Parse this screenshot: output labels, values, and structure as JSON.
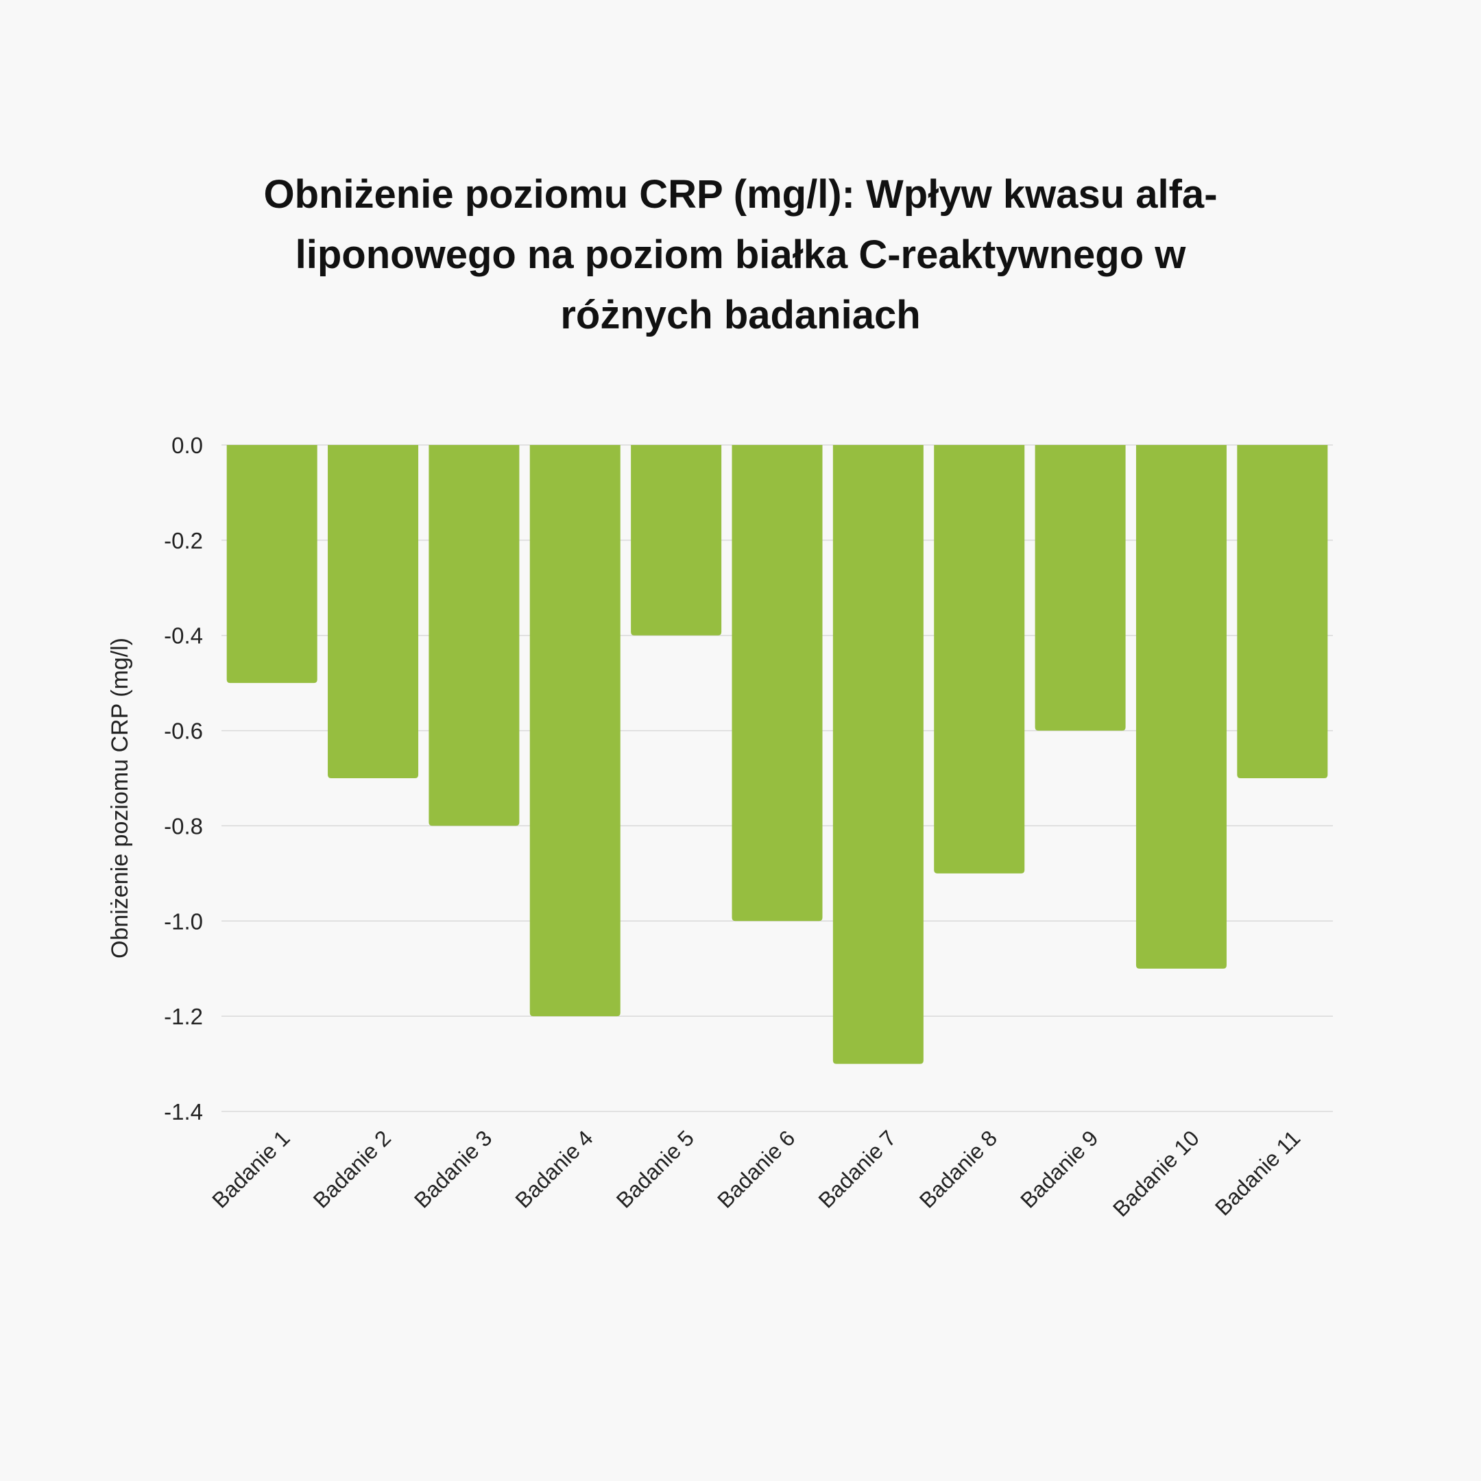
{
  "chart_data": {
    "type": "bar",
    "title": "Obniżenie poziomu CRP (mg/l): Wpływ kwasu alfa-liponowego na poziom białka C-reaktywnego w różnych badaniach",
    "title_lines": [
      "Obniżenie poziomu CRP (mg/l): Wpływ kwasu alfa-",
      "liponowego na poziom białka C-reaktywnego w",
      "różnych badaniach"
    ],
    "xlabel": "",
    "ylabel": "Obniżenie poziomu CRP (mg/l)",
    "categories": [
      "Badanie 1",
      "Badanie 2",
      "Badanie 3",
      "Badanie 4",
      "Badanie 5",
      "Badanie 6",
      "Badanie 7",
      "Badanie 8",
      "Badanie 9",
      "Badanie 10",
      "Badanie 11"
    ],
    "values": [
      -0.5,
      -0.7,
      -0.8,
      -1.2,
      -0.4,
      -1.0,
      -1.3,
      -0.9,
      -0.6,
      -1.1,
      -0.7
    ],
    "ylim": [
      -1.4,
      0.0
    ],
    "yticks": [
      "0.0",
      "-0.2",
      "-0.4",
      "-0.6",
      "-0.8",
      "-1.0",
      "-1.2",
      "-1.4"
    ],
    "grid": true,
    "legend": "none",
    "bar_color": "#96be40",
    "grid_color": "#d9d9d9"
  }
}
